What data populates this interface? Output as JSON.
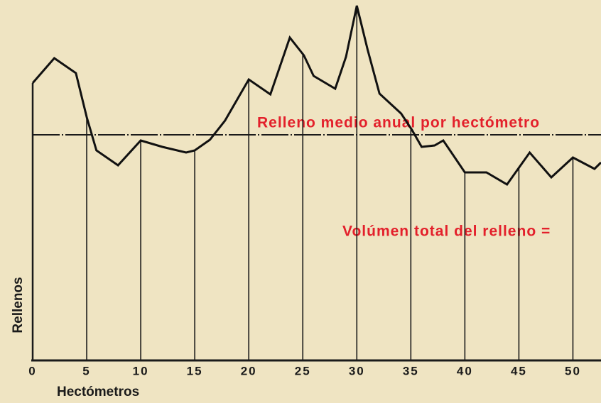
{
  "chart_data": {
    "type": "line",
    "x_label": "Hectómetros",
    "y_label": "Rellenos",
    "x": [
      0,
      2,
      4,
      5,
      5.9,
      7.9,
      10,
      12,
      14.2,
      15,
      16.4,
      17.8,
      20,
      22,
      23.8,
      25.1,
      26,
      28,
      29,
      30,
      31,
      32.1,
      34.1,
      35.1,
      36,
      37.2,
      38,
      40,
      42,
      43.9,
      46,
      48,
      50,
      52,
      52.6
    ],
    "values": [
      78.2,
      85.2,
      81,
      68.6,
      59.2,
      55,
      62,
      60.2,
      58.6,
      59.2,
      62.2,
      67.6,
      79.2,
      75,
      91,
      86,
      80.2,
      76.6,
      85.6,
      100,
      87.6,
      75.2,
      69.6,
      65,
      60.2,
      60.6,
      62,
      53,
      53,
      49.6,
      58.6,
      51.6,
      57.2,
      54,
      55.8
    ],
    "color": "#111111",
    "xlim": [
      0,
      52.6
    ],
    "ylim": [
      0,
      100
    ],
    "xticks": [
      0,
      5,
      10,
      15,
      20,
      25,
      30,
      35,
      40,
      45,
      50
    ],
    "mean_line": {
      "value": 63.6,
      "label": "Relleno medio anual por hectómetro"
    },
    "annotation": "Volúmen total del relleno ="
  }
}
